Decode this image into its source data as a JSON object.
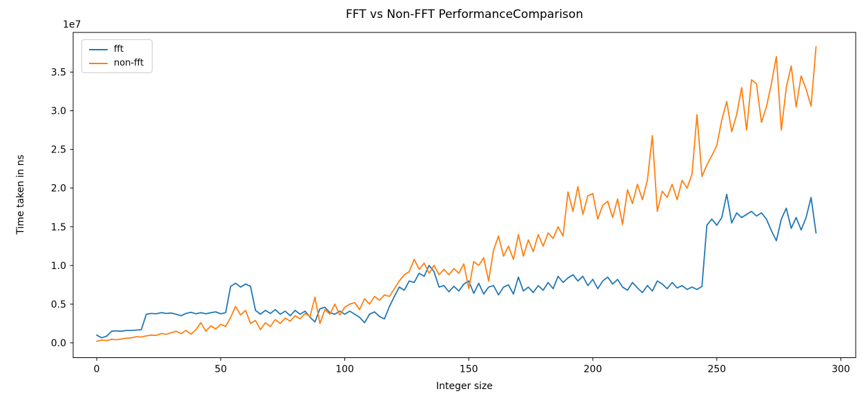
{
  "figure": {
    "title": "FFT vs Non-FFT PerformanceComparison",
    "xlabel": "Integer size",
    "ylabel": "Time taken in ns",
    "offset_text": "1e7"
  },
  "chart_data": {
    "type": "line",
    "title": "FFT vs Non-FFT PerformanceComparison",
    "xlabel": "Integer size",
    "ylabel": "Time taken in ns",
    "values_unit": "1e7 ns (y values below are in units of 1e7 nanoseconds)",
    "grid": false,
    "legend_position": "upper left",
    "xlim": [
      -9.5,
      306
    ],
    "ylim": [
      -0.192,
      4.013
    ],
    "xticks": [
      0,
      50,
      100,
      150,
      200,
      250,
      300
    ],
    "xtick_labels": [
      "0",
      "50",
      "100",
      "150",
      "200",
      "250",
      "300"
    ],
    "yticks": [
      0.0,
      0.5,
      1.0,
      1.5,
      2.0,
      2.5,
      3.0,
      3.5
    ],
    "ytick_labels": [
      "0.0",
      "0.5",
      "1.0",
      "1.5",
      "2.0",
      "2.5",
      "3.0",
      "3.5"
    ],
    "x": [
      0,
      2,
      4,
      6,
      8,
      10,
      12,
      14,
      16,
      18,
      20,
      22,
      24,
      26,
      28,
      30,
      32,
      34,
      36,
      38,
      40,
      42,
      44,
      46,
      48,
      50,
      52,
      54,
      56,
      58,
      60,
      62,
      64,
      66,
      68,
      70,
      72,
      74,
      76,
      78,
      80,
      82,
      84,
      86,
      88,
      90,
      92,
      94,
      96,
      98,
      100,
      102,
      104,
      106,
      108,
      110,
      112,
      114,
      116,
      118,
      120,
      122,
      124,
      126,
      128,
      130,
      132,
      134,
      136,
      138,
      140,
      142,
      144,
      146,
      148,
      150,
      152,
      154,
      156,
      158,
      160,
      162,
      164,
      166,
      168,
      170,
      172,
      174,
      176,
      178,
      180,
      182,
      184,
      186,
      188,
      190,
      192,
      194,
      196,
      198,
      200,
      202,
      204,
      206,
      208,
      210,
      212,
      214,
      216,
      218,
      220,
      222,
      224,
      226,
      228,
      230,
      232,
      234,
      236,
      238,
      240,
      242,
      244,
      246,
      248,
      250,
      252,
      254,
      256,
      258,
      260,
      262,
      264,
      266,
      268,
      270,
      272,
      274,
      276,
      278,
      280,
      282,
      284,
      286,
      288,
      290
    ],
    "series": [
      {
        "name": "fft",
        "color": "#1f77b4",
        "values": [
          0.1,
          0.065,
          0.085,
          0.15,
          0.155,
          0.15,
          0.16,
          0.16,
          0.165,
          0.17,
          0.37,
          0.38,
          0.375,
          0.39,
          0.38,
          0.385,
          0.37,
          0.35,
          0.38,
          0.395,
          0.375,
          0.39,
          0.375,
          0.39,
          0.4,
          0.375,
          0.39,
          0.73,
          0.77,
          0.72,
          0.76,
          0.73,
          0.42,
          0.37,
          0.42,
          0.38,
          0.43,
          0.37,
          0.41,
          0.35,
          0.42,
          0.37,
          0.41,
          0.33,
          0.27,
          0.44,
          0.46,
          0.39,
          0.37,
          0.41,
          0.37,
          0.41,
          0.37,
          0.33,
          0.26,
          0.37,
          0.4,
          0.34,
          0.31,
          0.47,
          0.6,
          0.72,
          0.68,
          0.8,
          0.78,
          0.9,
          0.86,
          1.0,
          0.92,
          0.72,
          0.74,
          0.66,
          0.73,
          0.67,
          0.76,
          0.8,
          0.64,
          0.77,
          0.63,
          0.72,
          0.74,
          0.62,
          0.72,
          0.75,
          0.63,
          0.85,
          0.67,
          0.72,
          0.65,
          0.74,
          0.68,
          0.78,
          0.7,
          0.86,
          0.78,
          0.84,
          0.88,
          0.8,
          0.86,
          0.74,
          0.82,
          0.7,
          0.8,
          0.85,
          0.76,
          0.82,
          0.72,
          0.68,
          0.78,
          0.71,
          0.65,
          0.74,
          0.67,
          0.8,
          0.76,
          0.7,
          0.78,
          0.71,
          0.74,
          0.69,
          0.72,
          0.69,
          0.73,
          1.52,
          1.6,
          1.52,
          1.62,
          1.92,
          1.55,
          1.68,
          1.62,
          1.66,
          1.7,
          1.64,
          1.68,
          1.6,
          1.45,
          1.32,
          1.6,
          1.74,
          1.48,
          1.62,
          1.46,
          1.62,
          1.88,
          1.42
        ]
      },
      {
        "name": "non-fft",
        "color": "#ff7f0e",
        "values": [
          0.02,
          0.035,
          0.03,
          0.045,
          0.04,
          0.05,
          0.06,
          0.065,
          0.08,
          0.075,
          0.09,
          0.1,
          0.095,
          0.12,
          0.11,
          0.13,
          0.15,
          0.12,
          0.16,
          0.11,
          0.17,
          0.26,
          0.15,
          0.22,
          0.18,
          0.24,
          0.21,
          0.33,
          0.47,
          0.36,
          0.42,
          0.25,
          0.29,
          0.17,
          0.26,
          0.21,
          0.3,
          0.25,
          0.32,
          0.28,
          0.35,
          0.31,
          0.38,
          0.34,
          0.59,
          0.25,
          0.43,
          0.37,
          0.5,
          0.36,
          0.46,
          0.5,
          0.52,
          0.43,
          0.57,
          0.5,
          0.6,
          0.55,
          0.62,
          0.6,
          0.7,
          0.8,
          0.88,
          0.92,
          1.08,
          0.95,
          1.03,
          0.9,
          1.0,
          0.88,
          0.95,
          0.88,
          0.96,
          0.9,
          1.02,
          0.7,
          1.05,
          1.0,
          1.1,
          0.8,
          1.2,
          1.38,
          1.12,
          1.25,
          1.08,
          1.4,
          1.12,
          1.33,
          1.18,
          1.4,
          1.25,
          1.42,
          1.35,
          1.5,
          1.38,
          1.95,
          1.7,
          2.02,
          1.66,
          1.9,
          1.93,
          1.6,
          1.78,
          1.83,
          1.62,
          1.86,
          1.53,
          1.98,
          1.8,
          2.05,
          1.85,
          2.1,
          2.68,
          1.7,
          1.96,
          1.88,
          2.05,
          1.85,
          2.1,
          2.0,
          2.18,
          2.95,
          2.15,
          2.3,
          2.42,
          2.55,
          2.88,
          3.12,
          2.73,
          2.95,
          3.3,
          2.75,
          3.4,
          3.35,
          2.85,
          3.05,
          3.35,
          3.7,
          2.75,
          3.3,
          3.58,
          3.05,
          3.45,
          3.28,
          3.06,
          3.83
        ]
      }
    ]
  },
  "legend": {
    "entries": [
      {
        "label": "fft",
        "color": "#1f77b4"
      },
      {
        "label": "non-fft",
        "color": "#ff7f0e"
      }
    ]
  }
}
